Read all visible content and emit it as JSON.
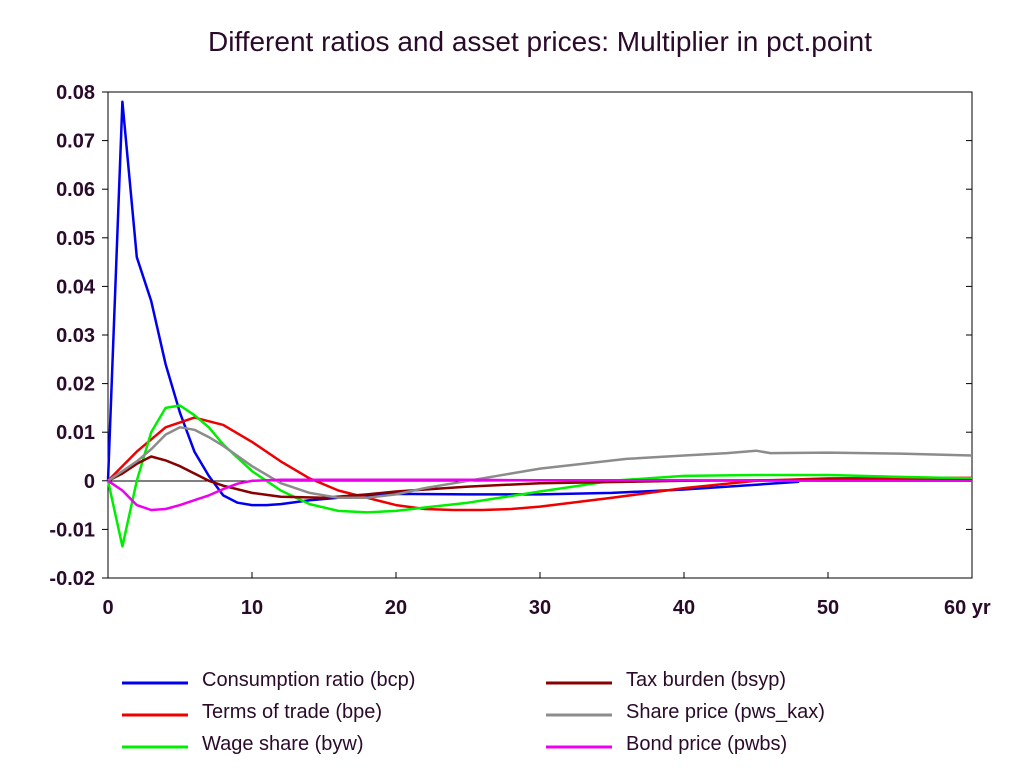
{
  "chart_data": {
    "type": "line",
    "title": "Different ratios and asset prices: Multiplier in pct.point",
    "xlabel": "",
    "ylabel": "",
    "x_unit_label": "yr",
    "xlim": [
      0,
      60
    ],
    "ylim": [
      -0.02,
      0.08
    ],
    "x_ticks": [
      0,
      10,
      20,
      30,
      40,
      50,
      60
    ],
    "x_tick_labels": [
      "0",
      "10",
      "20",
      "30",
      "40",
      "50",
      "60 yr"
    ],
    "y_ticks": [
      -0.02,
      -0.01,
      0,
      0.01,
      0.02,
      0.03,
      0.04,
      0.05,
      0.06,
      0.07,
      0.08
    ],
    "y_tick_labels": [
      "-0.02",
      "-0.01",
      "0",
      "0.01",
      "0.02",
      "0.03",
      "0.04",
      "0.05",
      "0.06",
      "0.07",
      "0.08"
    ],
    "grid": false,
    "zero_line": true,
    "legend_position": "bottom",
    "series": [
      {
        "name": "Consumption ratio (bcp)",
        "color": "#0000ee",
        "x": [
          0,
          1,
          2,
          3,
          4,
          5,
          6,
          7,
          8,
          9,
          10,
          11,
          12,
          14,
          16,
          18,
          20,
          25,
          30,
          35,
          40,
          45,
          48
        ],
        "y": [
          0,
          0.078,
          0.046,
          0.037,
          0.024,
          0.014,
          0.006,
          0.001,
          -0.003,
          -0.0045,
          -0.005,
          -0.005,
          -0.0048,
          -0.004,
          -0.0035,
          -0.003,
          -0.0027,
          -0.0028,
          -0.0028,
          -0.0025,
          -0.0018,
          -0.0008,
          -0.0002
        ]
      },
      {
        "name": "Terms of trade (bpe)",
        "color": "#ee0000",
        "x": [
          0,
          2,
          4,
          6,
          8,
          10,
          12,
          14,
          16,
          18,
          20,
          22,
          24,
          26,
          28,
          30,
          35,
          40,
          45,
          50,
          55,
          60
        ],
        "y": [
          0,
          0.006,
          0.011,
          0.013,
          0.0115,
          0.008,
          0.004,
          0.0005,
          -0.002,
          -0.0035,
          -0.005,
          -0.0058,
          -0.006,
          -0.006,
          -0.0058,
          -0.0053,
          -0.0035,
          -0.0015,
          0,
          0.0005,
          0.0006,
          0.0006
        ]
      },
      {
        "name": "Wage share (byw)",
        "color": "#00ee00",
        "x": [
          0,
          1,
          2,
          3,
          4,
          5,
          6,
          7,
          8,
          10,
          12,
          14,
          16,
          18,
          20,
          22,
          25,
          30,
          35,
          40,
          45,
          50,
          55,
          60
        ],
        "y": [
          0,
          -0.0135,
          0,
          0.01,
          0.015,
          0.0155,
          0.0135,
          0.011,
          0.0075,
          0.002,
          -0.002,
          -0.0048,
          -0.0062,
          -0.0065,
          -0.0062,
          -0.0055,
          -0.0045,
          -0.0022,
          0,
          0.001,
          0.0012,
          0.0012,
          0.0008,
          0.0005
        ]
      },
      {
        "name": "Tax burden (bsyp)",
        "color": "#880000",
        "x": [
          0,
          1,
          2,
          3,
          4,
          5,
          6,
          7,
          8,
          10,
          12,
          15,
          18,
          20,
          25,
          30,
          40,
          50,
          60
        ],
        "y": [
          0,
          0.0015,
          0.0035,
          0.005,
          0.0042,
          0.003,
          0.0015,
          0,
          -0.001,
          -0.0025,
          -0.0033,
          -0.0035,
          -0.0028,
          -0.0022,
          -0.0012,
          -0.0005,
          0,
          0.0002,
          0.0001
        ]
      },
      {
        "name": "Share price (pws_kax)",
        "color": "#8c8c8c",
        "x": [
          0,
          2,
          3,
          4,
          5,
          6,
          7,
          8,
          10,
          12,
          14,
          16,
          18,
          20,
          22,
          25,
          28,
          30,
          33,
          36,
          40,
          43,
          45,
          46,
          50,
          55,
          60
        ],
        "y": [
          0,
          0.004,
          0.0065,
          0.0095,
          0.011,
          0.0105,
          0.009,
          0.0072,
          0.003,
          -0.0005,
          -0.0025,
          -0.0035,
          -0.0035,
          -0.0028,
          -0.0015,
          0,
          0.0015,
          0.0025,
          0.0035,
          0.0045,
          0.0052,
          0.0057,
          0.0062,
          0.0057,
          0.0058,
          0.0056,
          0.0052
        ]
      },
      {
        "name": "Bond price (pwbs)",
        "color": "#ee00ee",
        "x": [
          0,
          1,
          2,
          3,
          4,
          5,
          6,
          7,
          8,
          9,
          10,
          12,
          14,
          16,
          18,
          20,
          25,
          30,
          40,
          50,
          60
        ],
        "y": [
          0,
          -0.002,
          -0.005,
          -0.006,
          -0.0058,
          -0.005,
          -0.004,
          -0.003,
          -0.0017,
          -0.0006,
          0,
          0.0002,
          0.0002,
          0.0002,
          0.0002,
          0.0002,
          0.0002,
          0.0001,
          0.0001,
          0,
          0
        ]
      }
    ]
  }
}
